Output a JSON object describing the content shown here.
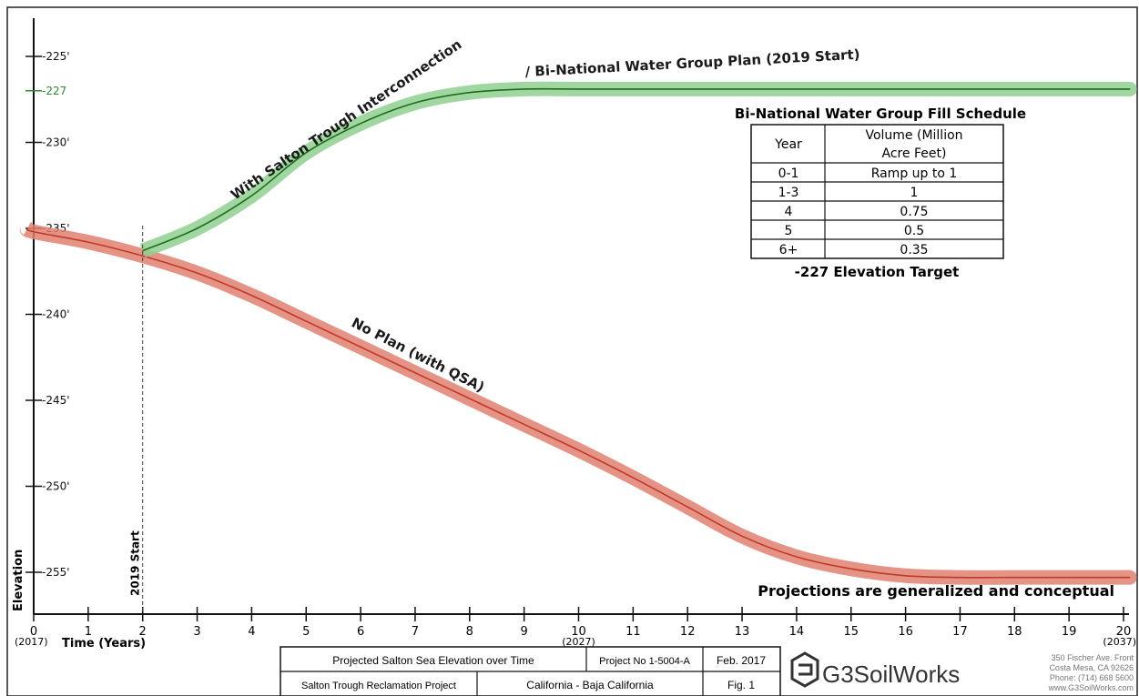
{
  "chart_data": {
    "type": "line",
    "xlabel": "Time (Years)",
    "ylabel": "Elevation",
    "xlim": [
      0,
      20
    ],
    "ylim": [
      -258,
      -223
    ],
    "x_ticks": [
      0,
      1,
      2,
      3,
      4,
      5,
      6,
      7,
      8,
      9,
      10,
      11,
      12,
      13,
      14,
      15,
      16,
      17,
      18,
      19,
      20
    ],
    "x_tick_labels": [
      "0",
      "1",
      "2",
      "3",
      "4",
      "5",
      "6",
      "7",
      "8",
      "9",
      "10",
      "11",
      "12",
      "13",
      "14",
      "15",
      "16",
      "17",
      "18",
      "19",
      "20"
    ],
    "x_subtick_labels": [
      {
        "x": 0,
        "label": "(2017)"
      },
      {
        "x": 10,
        "label": "(2027)"
      },
      {
        "x": 20,
        "label": "(2037)"
      }
    ],
    "y_ticks": [
      -225,
      -227,
      -230,
      -235,
      -240,
      -245,
      -250,
      -255
    ],
    "y_tick_labels": [
      "-225'",
      "-227",
      "-230'",
      "-235'",
      "-240'",
      "-245'",
      "-250'",
      "-255'"
    ],
    "highlight_tick": {
      "value": -227,
      "color": "#2e8b2e"
    },
    "series": [
      {
        "name": "No Plan (with QSA)",
        "color": "#c0392b",
        "band_color": "#e08070",
        "x": [
          0,
          1,
          2,
          3,
          4,
          5,
          6,
          7,
          8,
          9,
          10,
          11,
          12,
          13,
          14,
          15,
          16,
          17,
          18,
          19,
          20
        ],
        "y": [
          -235.2,
          -235.8,
          -236.6,
          -237.6,
          -238.9,
          -240.4,
          -241.9,
          -243.4,
          -244.9,
          -246.4,
          -247.9,
          -249.5,
          -251.2,
          -252.9,
          -254.1,
          -254.8,
          -255.2,
          -255.3,
          -255.3,
          -255.3,
          -255.3
        ]
      },
      {
        "name": "With Salton Trough Interconnection / Bi-National Water Group Plan (2019 Start)",
        "color": "#1e6b1e",
        "band_color": "#8fd08f",
        "x": [
          2,
          3,
          4,
          5,
          6,
          7,
          8,
          9,
          10,
          11,
          12,
          13,
          14,
          15,
          16,
          17,
          18,
          19,
          20
        ],
        "y": [
          -236.3,
          -235.0,
          -233.1,
          -230.6,
          -228.9,
          -227.7,
          -227.1,
          -226.9,
          -226.9,
          -226.9,
          -226.9,
          -226.9,
          -226.9,
          -226.9,
          -226.9,
          -226.9,
          -226.9,
          -226.9,
          -226.9
        ]
      }
    ],
    "annotations": [
      {
        "text": "No Plan (with QSA)"
      },
      {
        "text": "With Salton Trough Interconnection"
      },
      {
        "text": "/ Bi-National Water Group Plan (2019 Start)"
      },
      {
        "text": "2019 Start"
      },
      {
        "text": "Projections are generalized and conceptual"
      }
    ],
    "start_marker_x": 2
  },
  "schedule": {
    "title": "Bi-National Water Group Fill Schedule",
    "headers": [
      "Year",
      "Volume (Million",
      "Acre Feet)"
    ],
    "rows": [
      [
        "0-1",
        "Ramp up to 1"
      ],
      [
        "1-3",
        "1"
      ],
      [
        "4",
        "0.75"
      ],
      [
        "5",
        "0.5"
      ],
      [
        "6+",
        "0.35"
      ]
    ],
    "footer": "-227 Elevation Target"
  },
  "title_block": {
    "chart_title": "Projected Salton Sea Elevation over Time",
    "project_no": "Project No 1-5004-A",
    "date": "Feb. 2017",
    "project_name": "Salton Trough Reclamation Project",
    "region": "California  -  Baja California",
    "fig": "Fig. 1",
    "company": "G3SoilWorks",
    "address": [
      "350 Fischer Ave. Front",
      "Costa Mesa, CA 92626",
      "Phone: (714) 668 5600",
      "www.G3SoilWorks.com"
    ]
  }
}
